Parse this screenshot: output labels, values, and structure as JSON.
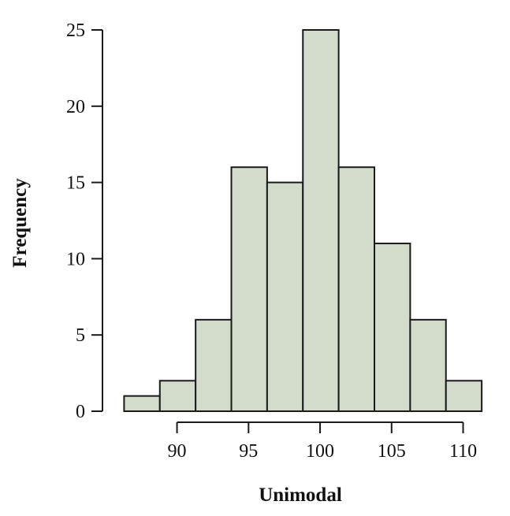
{
  "chart_data": {
    "type": "bar",
    "title": "",
    "xlabel": "Unimodal",
    "ylabel": "Frequency",
    "bin_edges": [
      86.3,
      88.8,
      91.3,
      93.8,
      96.3,
      98.8,
      101.3,
      103.8,
      106.3,
      108.8,
      111.3
    ],
    "values": [
      1,
      2,
      6,
      16,
      15,
      25,
      16,
      11,
      6,
      2
    ],
    "xticks": [
      90,
      95,
      100,
      105,
      110
    ],
    "yticks": [
      0,
      5,
      10,
      15,
      20,
      25
    ],
    "xlim": [
      84.9,
      111.9
    ],
    "ylim": [
      0,
      25
    ],
    "grid": false,
    "bar_color": "#d3dccb"
  }
}
